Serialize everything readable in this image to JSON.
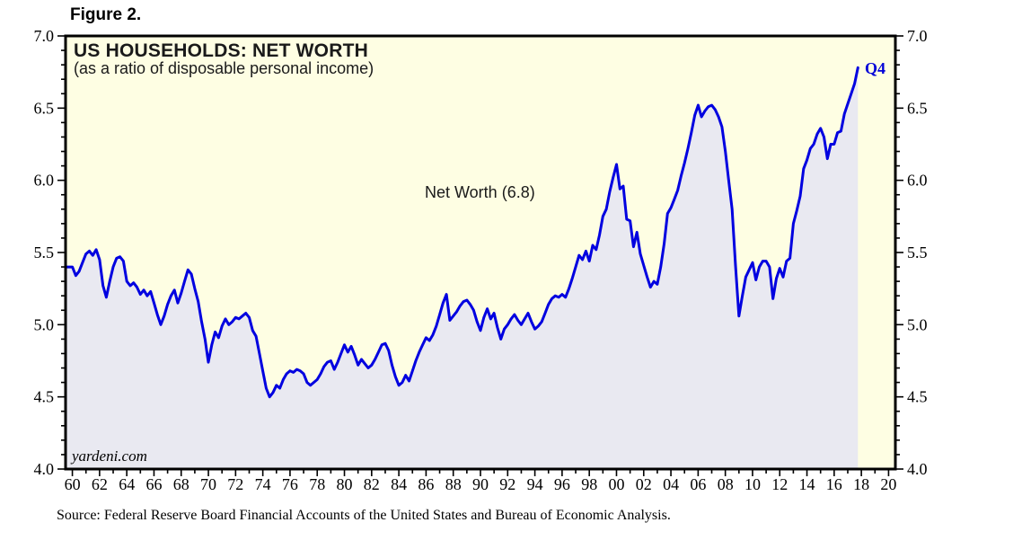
{
  "figure": {
    "label": "Figure 2.",
    "source": "Source: Federal Reserve Board Financial Accounts of the United States and Bureau of Economic Analysis."
  },
  "panel": {
    "title": "US HOUSEHOLDS: NET WORTH",
    "subtitle": "(as a ratio of disposable personal income)",
    "series_annotation": "Net Worth (6.8)",
    "last_point_label": "Q4",
    "watermark": "yardeni.com"
  },
  "colors": {
    "plot_background": "#fefee3",
    "area_fill": "#e9e9f1",
    "line": "#0000e0",
    "q4_label": "#0000d8",
    "axis": "#000000",
    "tick_label_text": "#000000"
  },
  "chart_data": {
    "type": "line",
    "title": "US HOUSEHOLDS: NET WORTH (as a ratio of disposable personal income)",
    "frequency": "quarterly",
    "x_start": 1960.0,
    "x_step_years": 0.25,
    "xlim": [
      1959.5,
      2020.5
    ],
    "ylim": [
      4.0,
      7.0
    ],
    "x_tick_labels": [
      "60",
      "62",
      "64",
      "66",
      "68",
      "70",
      "72",
      "74",
      "76",
      "78",
      "80",
      "82",
      "84",
      "86",
      "88",
      "90",
      "92",
      "94",
      "96",
      "98",
      "00",
      "02",
      "04",
      "06",
      "08",
      "10",
      "12",
      "14",
      "16",
      "18",
      "20"
    ],
    "x_major_step_years": 2,
    "x_minor_step_years": 1,
    "y_tick_labels": [
      "7.0",
      "6.5",
      "6.0",
      "5.5",
      "5.0",
      "4.5",
      "4.0"
    ],
    "y_major_step": 0.5,
    "y_minor_step": 0.1,
    "legend_position": "none",
    "grid": false,
    "last_point": {
      "year": 2017.75,
      "quarter": "2017Q4",
      "label": "Q4",
      "value": 6.78
    },
    "values": [
      5.4,
      5.34,
      5.37,
      5.43,
      5.49,
      5.51,
      5.48,
      5.52,
      5.45,
      5.27,
      5.19,
      5.3,
      5.4,
      5.46,
      5.47,
      5.44,
      5.3,
      5.27,
      5.29,
      5.26,
      5.21,
      5.24,
      5.2,
      5.23,
      5.15,
      5.07,
      5.0,
      5.06,
      5.14,
      5.2,
      5.24,
      5.15,
      5.22,
      5.3,
      5.38,
      5.35,
      5.25,
      5.16,
      5.02,
      4.9,
      4.74,
      4.86,
      4.95,
      4.91,
      4.99,
      5.04,
      5.0,
      5.02,
      5.05,
      5.04,
      5.06,
      5.08,
      5.05,
      4.96,
      4.92,
      4.8,
      4.68,
      4.56,
      4.5,
      4.53,
      4.58,
      4.56,
      4.62,
      4.66,
      4.68,
      4.67,
      4.69,
      4.68,
      4.66,
      4.6,
      4.58,
      4.6,
      4.62,
      4.66,
      4.71,
      4.74,
      4.75,
      4.69,
      4.74,
      4.8,
      4.86,
      4.81,
      4.85,
      4.79,
      4.72,
      4.76,
      4.73,
      4.7,
      4.72,
      4.76,
      4.81,
      4.86,
      4.87,
      4.82,
      4.72,
      4.64,
      4.58,
      4.6,
      4.65,
      4.61,
      4.68,
      4.75,
      4.81,
      4.86,
      4.91,
      4.89,
      4.93,
      4.99,
      5.07,
      5.15,
      5.21,
      5.03,
      5.06,
      5.09,
      5.13,
      5.16,
      5.17,
      5.14,
      5.1,
      5.02,
      4.96,
      5.05,
      5.11,
      5.04,
      5.08,
      4.98,
      4.9,
      4.97,
      5.0,
      5.04,
      5.07,
      5.03,
      5.0,
      5.04,
      5.08,
      5.02,
      4.97,
      4.99,
      5.02,
      5.08,
      5.14,
      5.18,
      5.2,
      5.19,
      5.21,
      5.19,
      5.25,
      5.32,
      5.4,
      5.48,
      5.45,
      5.51,
      5.44,
      5.55,
      5.52,
      5.62,
      5.75,
      5.8,
      5.92,
      6.02,
      6.11,
      5.94,
      5.96,
      5.73,
      5.72,
      5.54,
      5.64,
      5.49,
      5.41,
      5.33,
      5.26,
      5.3,
      5.28,
      5.4,
      5.56,
      5.77,
      5.81,
      5.87,
      5.93,
      6.03,
      6.12,
      6.22,
      6.33,
      6.45,
      6.52,
      6.44,
      6.48,
      6.51,
      6.52,
      6.49,
      6.44,
      6.37,
      6.2,
      6.0,
      5.8,
      5.41,
      5.06,
      5.2,
      5.33,
      5.38,
      5.43,
      5.31,
      5.4,
      5.44,
      5.44,
      5.4,
      5.18,
      5.32,
      5.39,
      5.33,
      5.44,
      5.46,
      5.7,
      5.79,
      5.89,
      6.08,
      6.14,
      6.22,
      6.25,
      6.32,
      6.36,
      6.3,
      6.15,
      6.25,
      6.25,
      6.33,
      6.34,
      6.46,
      6.53,
      6.6,
      6.67,
      6.78
    ]
  }
}
